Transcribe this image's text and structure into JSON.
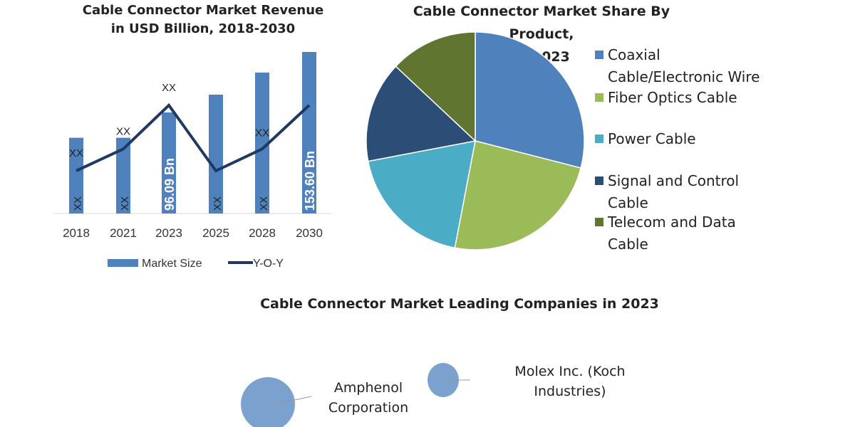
{
  "chart_data": [
    {
      "type": "bar",
      "title": "Cable Connector Market Revenue in USD Billion, 2018-2030",
      "title_lines": [
        "Cable Connector Market Revenue",
        "in USD Billion, 2018-2030"
      ],
      "categories": [
        "2018",
        "2021",
        "2023",
        "2025",
        "2028",
        "2030"
      ],
      "series": [
        {
          "name": "Market Size",
          "type": "bar",
          "color": "#4f81bd",
          "values": [
            72,
            72,
            96.09,
            113,
            134,
            153.6
          ],
          "labels": [
            "XX",
            "XX",
            "96.09 Bn",
            "XX",
            "XX",
            "153.60 Bn"
          ]
        },
        {
          "name": "Y-O-Y",
          "type": "line",
          "color": "#1f3864",
          "values": [
            2,
            3,
            5,
            2,
            3,
            5
          ],
          "labels": [
            "XX",
            "XX",
            "XX",
            "",
            "XX",
            ""
          ]
        }
      ],
      "legend": "bottom",
      "grid": false
    },
    {
      "type": "pie",
      "title": "Cable Connector Market Share By Product, in 2023",
      "title_lines": [
        "Cable Connector Market Share By Product,",
        "in 2023"
      ],
      "legend": "right",
      "slices": [
        {
          "label": "Coaxial Cable/Electronic Wire",
          "lines": [
            "Coaxial",
            "Cable/Electronic Wire"
          ],
          "value": 29,
          "color": "#4f81bd"
        },
        {
          "label": "Fiber Optics Cable",
          "lines": [
            "Fiber Optics Cable"
          ],
          "value": 24,
          "color": "#9bbb59"
        },
        {
          "label": "Power Cable",
          "lines": [
            "Power Cable"
          ],
          "value": 19,
          "color": "#4bacc6"
        },
        {
          "label": "Signal and Control Cable",
          "lines": [
            "Signal and Control",
            "Cable"
          ],
          "value": 15,
          "color": "#2c4d75"
        },
        {
          "label": "Telecom and Data Cable",
          "lines": [
            "Telecom and Data",
            "Cable"
          ],
          "value": 13,
          "color": "#5f7530"
        }
      ]
    },
    {
      "type": "bubble",
      "title": "Cable Connector Market Leading Companies in 2023",
      "companies": [
        {
          "name": "Amphenol Corporation",
          "lines": [
            "Amphenol",
            "Corporation"
          ],
          "color": "#7ba1cf"
        },
        {
          "name": "Molex Inc. (Koch Industries)",
          "lines": [
            "Molex Inc. (Koch",
            "Industries)"
          ],
          "color": "#7ba1cf"
        }
      ]
    }
  ]
}
